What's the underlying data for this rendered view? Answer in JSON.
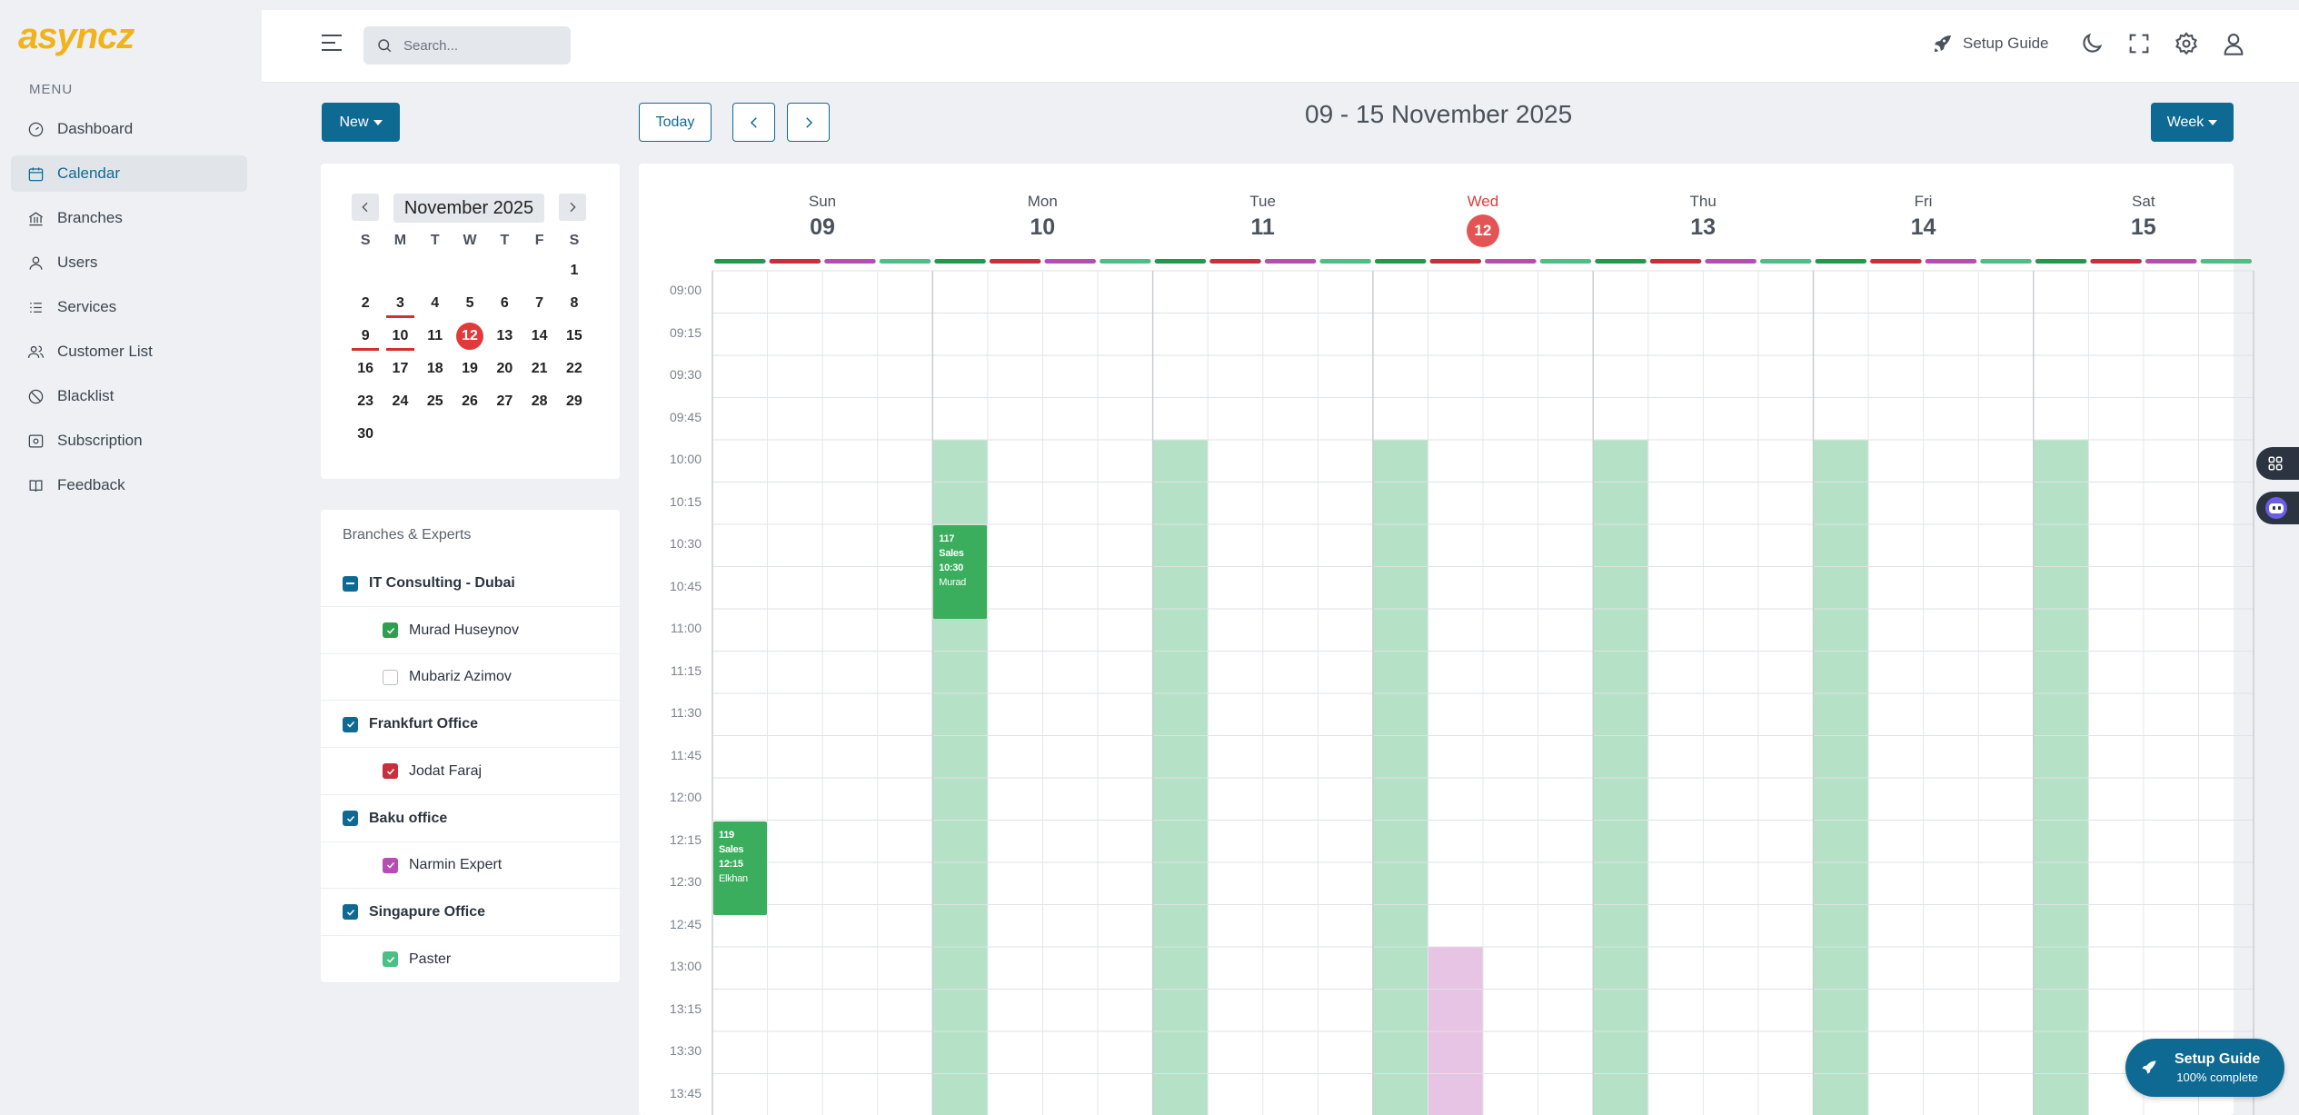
{
  "app": {
    "logo": "asyncz"
  },
  "sidebar": {
    "heading": "MENU",
    "items": [
      {
        "label": "Dashboard",
        "icon": "dashboard-icon",
        "active": false
      },
      {
        "label": "Calendar",
        "icon": "calendar-icon",
        "active": true
      },
      {
        "label": "Branches",
        "icon": "bank-icon",
        "active": false
      },
      {
        "label": "Users",
        "icon": "user-icon",
        "active": false
      },
      {
        "label": "Services",
        "icon": "list-icon",
        "active": false
      },
      {
        "label": "Customer List",
        "icon": "users-icon",
        "active": false
      },
      {
        "label": "Blacklist",
        "icon": "ban-icon",
        "active": false
      },
      {
        "label": "Subscription",
        "icon": "card-icon",
        "active": false
      },
      {
        "label": "Feedback",
        "icon": "book-icon",
        "active": false
      }
    ]
  },
  "header": {
    "search_placeholder": "Search...",
    "setup_guide_label": "Setup Guide"
  },
  "toolbar": {
    "new_label": "New",
    "today_label": "Today",
    "range_title": "09 - 15 November 2025",
    "view_label": "Week"
  },
  "mini_calendar": {
    "month_label": "November 2025",
    "weekdays": [
      "S",
      "M",
      "T",
      "W",
      "T",
      "F",
      "S"
    ],
    "leading_blanks": 6,
    "days_in_month": 30,
    "today": 12,
    "marked_days": [
      3,
      9,
      10
    ]
  },
  "branches": {
    "title": "Branches & Experts",
    "rows": [
      {
        "type": "branch",
        "label": "IT Consulting - Dubai",
        "state": "partial",
        "color": "#0f6a93"
      },
      {
        "type": "expert",
        "label": "Murad Huseynov",
        "state": "checked",
        "color": "#2e9e4f"
      },
      {
        "type": "expert",
        "label": "Mubariz Azimov",
        "state": "unchecked",
        "color": "#ffffff"
      },
      {
        "type": "branch",
        "label": "Frankfurt Office",
        "state": "checked",
        "color": "#0f6a93"
      },
      {
        "type": "expert",
        "label": "Jodat Faraj",
        "state": "checked",
        "color": "#c62f3b"
      },
      {
        "type": "branch",
        "label": "Baku office",
        "state": "checked",
        "color": "#0f6a93"
      },
      {
        "type": "expert",
        "label": "Narmin Expert",
        "state": "checked",
        "color": "#b94bb5"
      },
      {
        "type": "branch",
        "label": "Singapure Office",
        "state": "checked",
        "color": "#0f6a93"
      },
      {
        "type": "expert",
        "label": "Paster",
        "state": "checked",
        "color": "#4cbf84"
      }
    ]
  },
  "week": {
    "days": [
      {
        "name": "Sun",
        "num": "09",
        "today": false
      },
      {
        "name": "Mon",
        "num": "10",
        "today": false
      },
      {
        "name": "Tue",
        "num": "11",
        "today": false
      },
      {
        "name": "Wed",
        "num": "12",
        "today": true
      },
      {
        "name": "Thu",
        "num": "13",
        "today": false
      },
      {
        "name": "Fri",
        "num": "14",
        "today": false
      },
      {
        "name": "Sat",
        "num": "15",
        "today": false
      }
    ],
    "time_slots": [
      "09:00",
      "09:15",
      "09:30",
      "09:45",
      "10:00",
      "10:15",
      "10:30",
      "10:45",
      "11:00",
      "11:15",
      "11:30",
      "11:45",
      "12:00",
      "12:15",
      "12:30",
      "12:45",
      "13:00",
      "13:15",
      "13:30",
      "13:45"
    ],
    "expert_colors": [
      "#1f9a4a",
      "#c62f3b",
      "#b94bb5",
      "#4cbf84"
    ],
    "availability": [
      {
        "day": 1,
        "expert": 0,
        "from": "10:00",
        "to": "13:45",
        "color": "#b5e2c6"
      },
      {
        "day": 2,
        "expert": 0,
        "from": "10:00",
        "to": "13:45",
        "color": "#b5e2c6"
      },
      {
        "day": 3,
        "expert": 0,
        "from": "10:00",
        "to": "13:45",
        "color": "#b5e2c6"
      },
      {
        "day": 3,
        "expert": 1,
        "from": "13:00",
        "to": "13:45",
        "color": "#e8c4e4"
      },
      {
        "day": 4,
        "expert": 0,
        "from": "10:00",
        "to": "13:45",
        "color": "#b5e2c6"
      },
      {
        "day": 5,
        "expert": 0,
        "from": "10:00",
        "to": "13:45",
        "color": "#b5e2c6"
      },
      {
        "day": 6,
        "expert": 0,
        "from": "10:00",
        "to": "13:45",
        "color": "#b5e2c6"
      }
    ],
    "events": [
      {
        "day": 0,
        "expert": 0,
        "from": "12:15",
        "to": "12:30",
        "title": "119 Sales",
        "time": "12:15",
        "person": "Elkhan",
        "color": "#3aae5c"
      },
      {
        "day": 1,
        "expert": 0,
        "from": "10:30",
        "to": "10:45",
        "title": "117 Sales",
        "time": "10:30",
        "person": "Murad",
        "color": "#3aae5c"
      }
    ]
  },
  "setup_widget": {
    "title": "Setup Guide",
    "subtitle": "100% complete",
    "color": "#0f6a93"
  }
}
